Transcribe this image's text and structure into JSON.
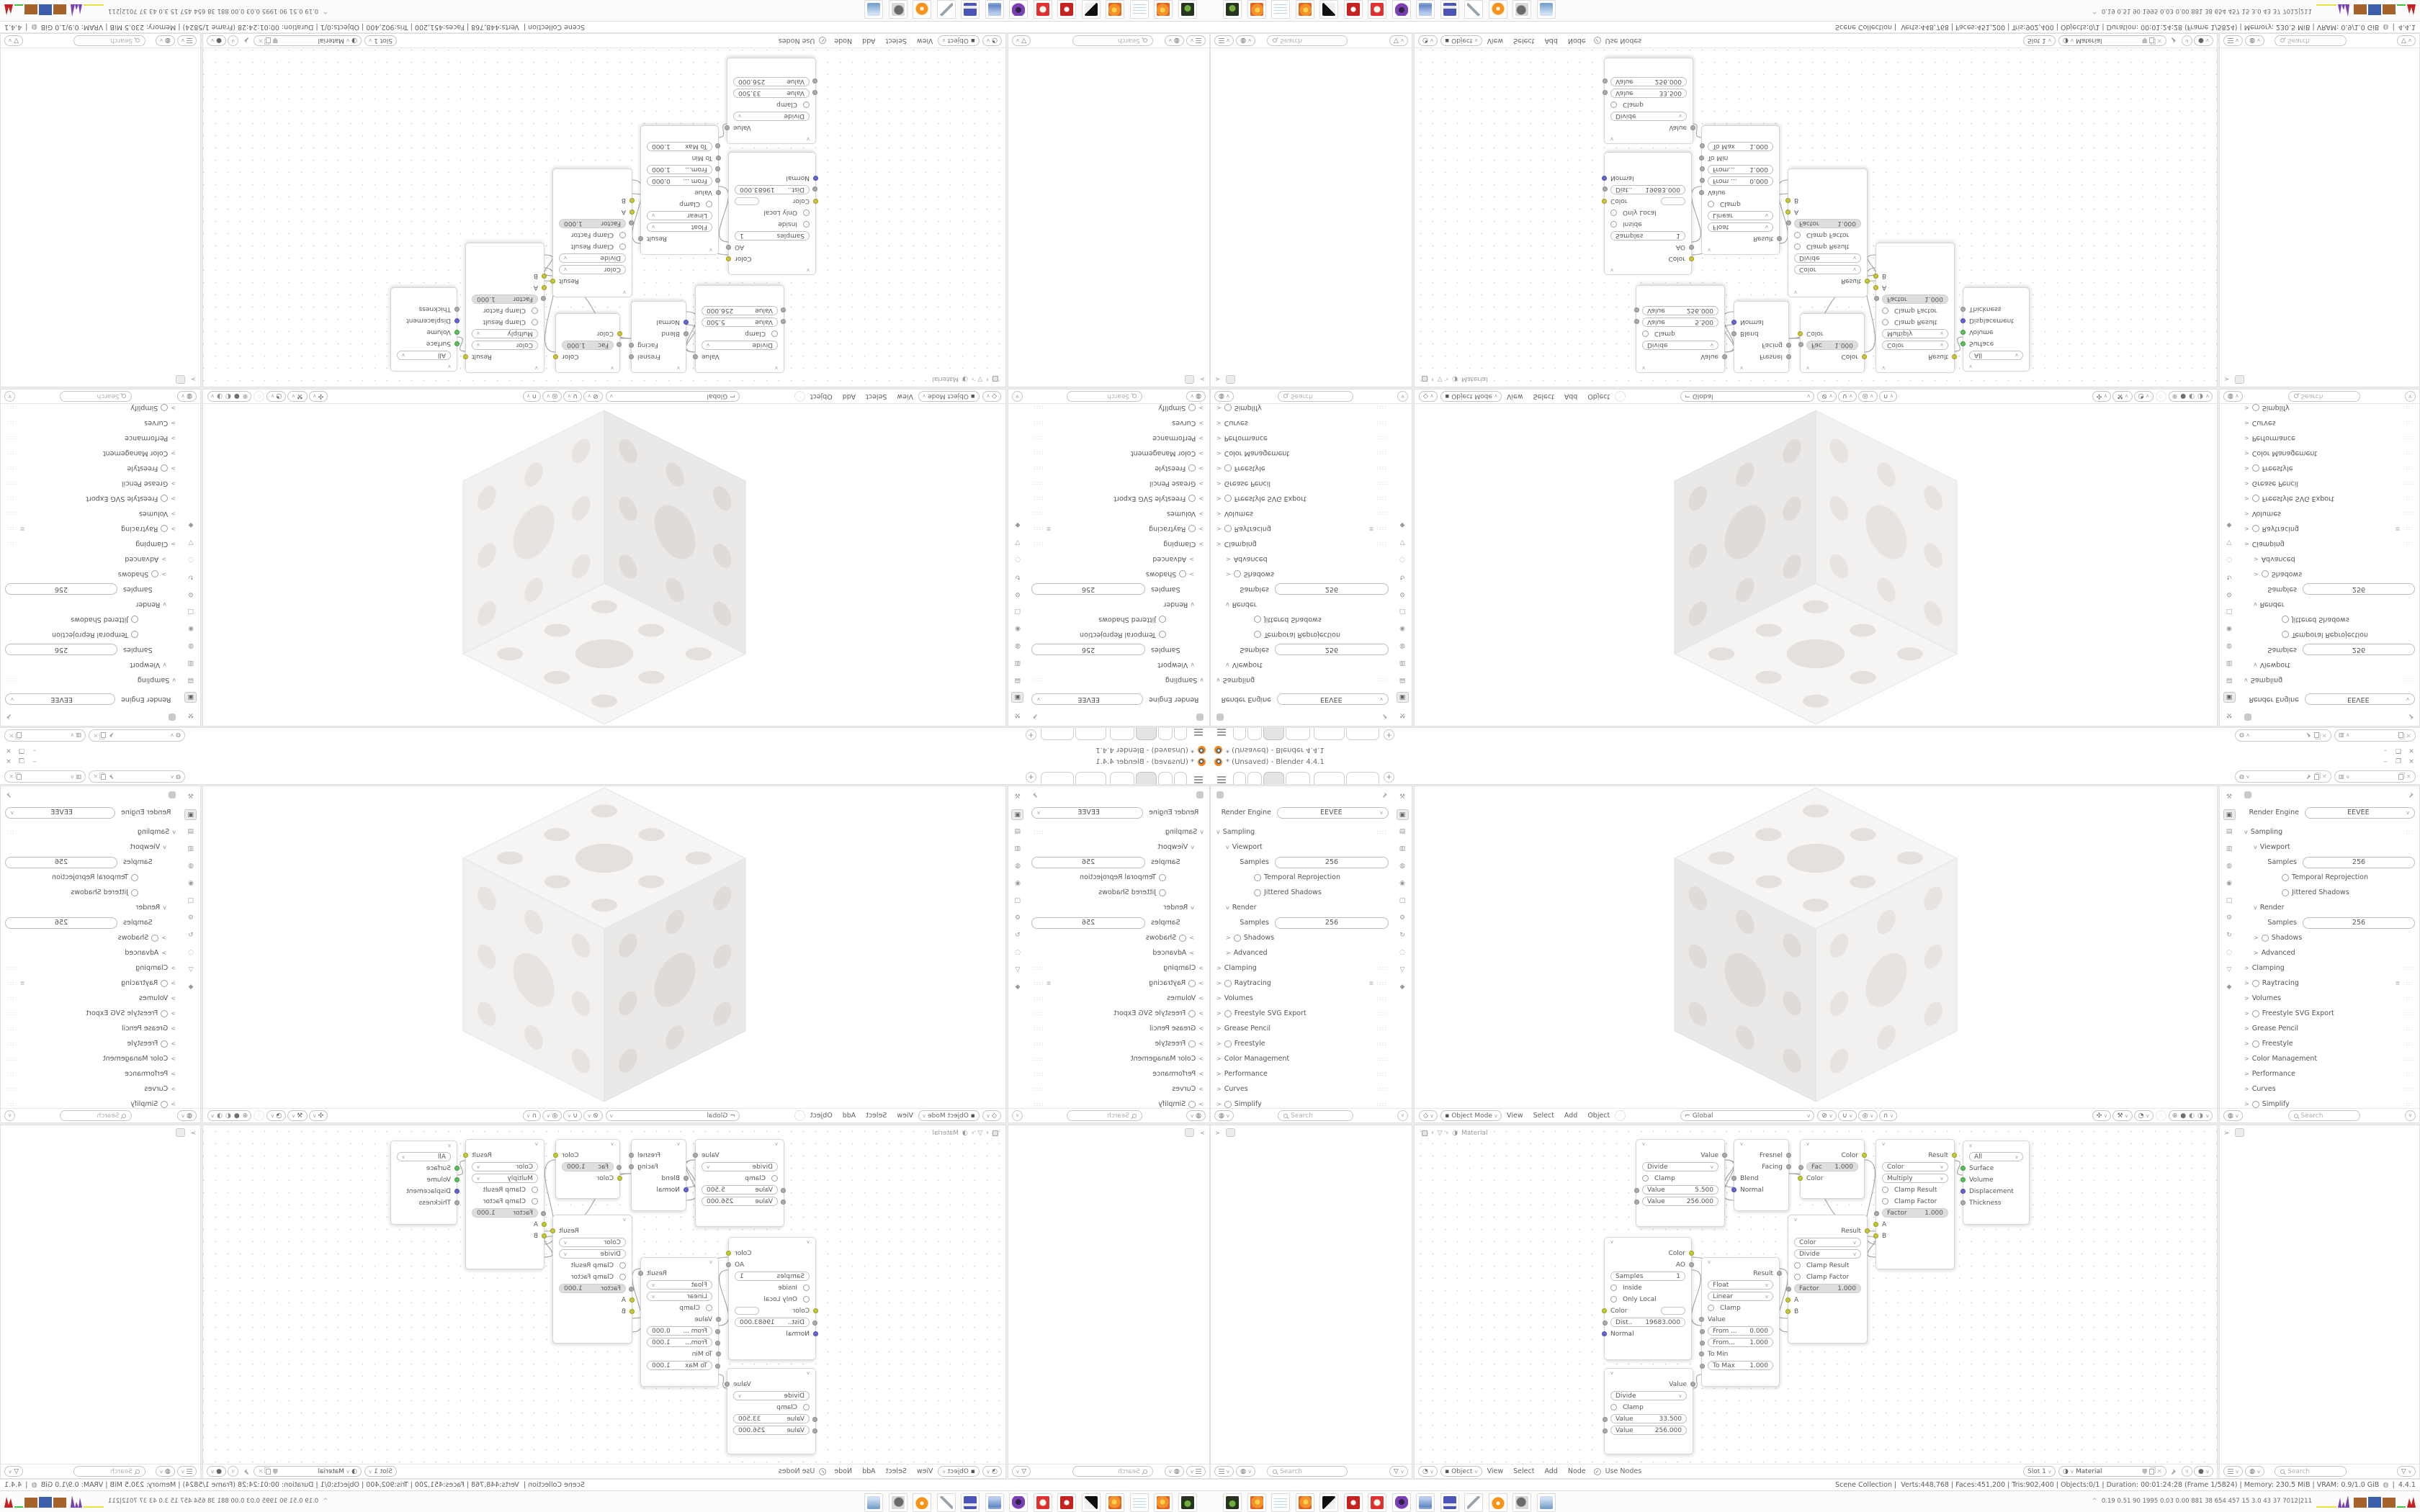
{
  "window": {
    "title": "* (Unsaved) - Blender 4.4.1",
    "minimize": "–",
    "maximize": "❐",
    "close": "×",
    "new_tab": "+"
  },
  "status_bar": {
    "scene": "Scene Collection",
    "details": "Verts:448,768 | Faces:451,200 | Tris:902,400 | Objects:0/1 | Duration: 00:01:24:28 (Frame 1/5824) | Memory: 230.5 MiB | VRAM: 0.9/1.0 GiB",
    "version": "4.4.1"
  },
  "props": {
    "render_engine_label": "Render Engine",
    "render_engine_value": "EEVEE",
    "sampling": "Sampling",
    "viewport": "Viewport",
    "samples_label": "Samples",
    "viewport_samples": "256",
    "temporal_reprojection": "Temporal Reprojection",
    "jittered_shadows": "Jittered Shadows",
    "render": "Render",
    "render_samples": "256",
    "shadows": "Shadows",
    "advanced": "Advanced",
    "clamping": "Clamping",
    "raytracing": "Raytracing",
    "volumes": "Volumes",
    "freestyle_svg": "Freestyle SVG Export",
    "grease_pencil": "Grease Pencil",
    "freestyle": "Freestyle",
    "color_management": "Color Management",
    "performance": "Performance",
    "curves": "Curves",
    "simplify": "Simplify"
  },
  "search_placeholder": "Search",
  "viewport_header": {
    "mode": "Object Mode",
    "view": "View",
    "select": "Select",
    "add": "Add",
    "object": "Object",
    "orientation": "Global"
  },
  "shader_header": {
    "shader_type": "Object",
    "view": "View",
    "select": "Select",
    "add": "Add",
    "node": "Node",
    "use_nodes": "Use Nodes",
    "slot": "Slot 1",
    "material": "Material"
  },
  "shader_breadcrumb": {
    "material": "Material"
  },
  "nodes": {
    "math_a": {
      "operation": "Divide",
      "clamp": "Clamp",
      "output": "Value",
      "value1_label": "Value",
      "value1": "5.500",
      "value2_label": "Value",
      "value2": "256.000"
    },
    "layer_weight": {
      "fresnel": "Fresnel",
      "facing": "Facing",
      "blend": "Blend",
      "normal": "Normal"
    },
    "invert": {
      "output": "Color",
      "fac_label": "Fac",
      "fac": "1.000",
      "color_in": "Color"
    },
    "mix_a": {
      "output": "Result",
      "data_type": "Color",
      "blend_mode": "Multiply",
      "clamp_result": "Clamp Result",
      "clamp_factor": "Clamp Factor",
      "factor_label": "Factor",
      "factor": "1.000",
      "a": "A",
      "b": "B"
    },
    "material_output": {
      "target": "All",
      "surface": "Surface",
      "volume": "Volume",
      "displacement": "Displacement",
      "thickness": "Thickness"
    },
    "ao": {
      "color_out": "Color",
      "ao_out": "AO",
      "samples_label": "Samples",
      "samples": "1",
      "inside": "Inside",
      "only_local": "Only Local",
      "color_in": "Color",
      "distance_label": "Dist..",
      "distance": "19683.000",
      "normal": "Normal"
    },
    "map_range": {
      "output": "Result",
      "data_type": "Float",
      "interpolation": "Linear",
      "clamp": "Clamp",
      "value": "Value",
      "from_min_label": "From ...",
      "from_min": "0.000",
      "from_max_label": "From...",
      "from_max": "1.000",
      "to_min": "To Min",
      "to_max_label": "To Max",
      "to_max": "1.000"
    },
    "math_b": {
      "operation": "Divide",
      "clamp": "Clamp",
      "output": "Value",
      "value1_label": "Value",
      "value1": "33.500",
      "value2_label": "Value",
      "value2": "256.000"
    },
    "mix_b": {
      "output": "Result",
      "data_type": "Color",
      "blend_mode": "Divide",
      "clamp_result": "Clamp Result",
      "clamp_factor": "Clamp Factor",
      "factor_label": "Factor",
      "factor": "1.000",
      "a": "A",
      "b": "B"
    }
  },
  "overlay_stats": {
    "values": "0.19 0.51  90  1995 0.03 0.00 881  38  654  457  15  3.0  43  37  7012|211"
  },
  "icons": {
    "search": "magnifier",
    "filter": "▽",
    "pin": "pushpin"
  }
}
